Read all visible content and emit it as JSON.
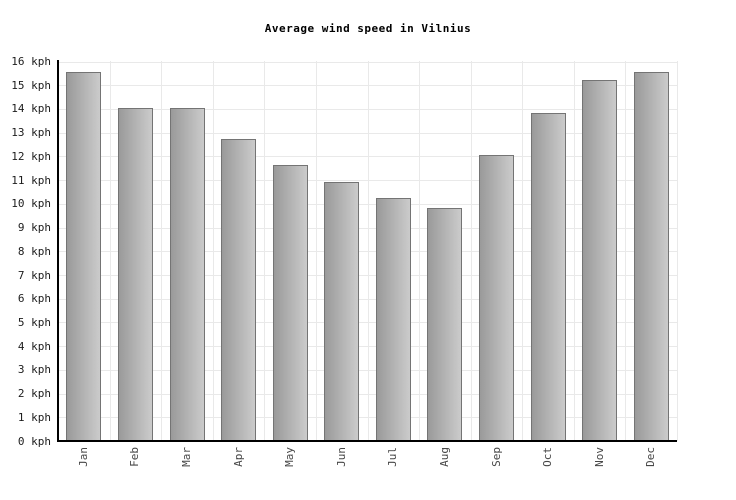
{
  "chart_data": {
    "type": "bar",
    "title": "Average wind speed in Vilnius",
    "categories": [
      "Jan",
      "Feb",
      "Mar",
      "Apr",
      "May",
      "Jun",
      "Jul",
      "Aug",
      "Sep",
      "Oct",
      "Nov",
      "Dec"
    ],
    "values": [
      15.5,
      14.0,
      14.0,
      12.7,
      11.6,
      10.9,
      10.2,
      9.8,
      12.0,
      13.8,
      15.2,
      15.5
    ],
    "unit": "kph",
    "xlabel": "",
    "ylabel": "",
    "ylim": [
      0,
      16
    ],
    "ytick_step": 1,
    "yticks": [
      "0 kph",
      "1 kph",
      "2 kph",
      "3 kph",
      "4 kph",
      "5 kph",
      "6 kph",
      "7 kph",
      "8 kph",
      "9 kph",
      "10 kph",
      "11 kph",
      "12 kph",
      "13 kph",
      "14 kph",
      "15 kph",
      "16 kph"
    ],
    "grid": "on",
    "legend": "none",
    "colors": {
      "background": "#ffffff",
      "title_text": "#000000",
      "axis": "#000000",
      "grid": "#e9e9e9",
      "bar_gradient_left": "#9a9a9a",
      "bar_gradient_right": "#cbcbcb",
      "bar_border": "#747474",
      "y_tick_text": "#1c1c1c",
      "x_tick_text": "#474747"
    }
  }
}
